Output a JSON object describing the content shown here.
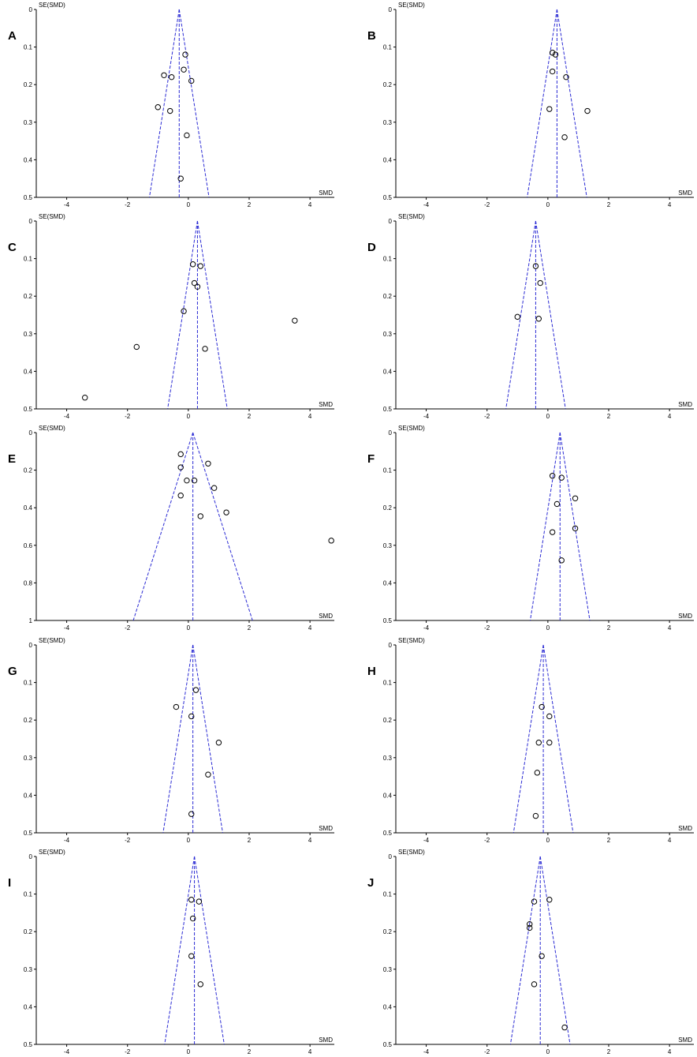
{
  "chart_data": [
    {
      "type": "scatter",
      "panel": "A",
      "pooled_smd": -0.3,
      "xlabel": "SMD",
      "ylabel": "SE(SMD)",
      "xlim": [
        -5,
        4.8
      ],
      "ylim": [
        0.5,
        0
      ],
      "x_ticks": [
        -4,
        -2,
        0,
        2,
        4
      ],
      "y_ticks": [
        0,
        0.1,
        0.2,
        0.3,
        0.4,
        0.5
      ],
      "points": [
        [
          -0.1,
          0.12
        ],
        [
          -0.15,
          0.16
        ],
        [
          0.1,
          0.19
        ],
        [
          -0.8,
          0.175
        ],
        [
          -0.55,
          0.18
        ],
        [
          -1.0,
          0.26
        ],
        [
          -0.6,
          0.27
        ],
        [
          -0.05,
          0.335
        ],
        [
          -0.25,
          0.45
        ]
      ]
    },
    {
      "type": "scatter",
      "panel": "B",
      "pooled_smd": 0.3,
      "xlabel": "SMD",
      "ylabel": "SE(SMD)",
      "xlim": [
        -5,
        4.8
      ],
      "ylim": [
        0.5,
        0
      ],
      "x_ticks": [
        -4,
        -2,
        0,
        2,
        4
      ],
      "y_ticks": [
        0,
        0.1,
        0.2,
        0.3,
        0.4,
        0.5
      ],
      "points": [
        [
          0.15,
          0.115
        ],
        [
          0.25,
          0.12
        ],
        [
          0.15,
          0.165
        ],
        [
          0.6,
          0.18
        ],
        [
          0.05,
          0.265
        ],
        [
          1.3,
          0.27
        ],
        [
          0.55,
          0.34
        ]
      ]
    },
    {
      "type": "scatter",
      "panel": "C",
      "pooled_smd": 0.3,
      "xlabel": "SMD",
      "ylabel": "SE(SMD)",
      "xlim": [
        -5,
        4.8
      ],
      "ylim": [
        0.5,
        0
      ],
      "x_ticks": [
        -4,
        -2,
        0,
        2,
        4
      ],
      "y_ticks": [
        0,
        0.1,
        0.2,
        0.3,
        0.4,
        0.5
      ],
      "points": [
        [
          0.15,
          0.115
        ],
        [
          0.4,
          0.12
        ],
        [
          0.2,
          0.165
        ],
        [
          0.3,
          0.175
        ],
        [
          -0.15,
          0.24
        ],
        [
          3.5,
          0.265
        ],
        [
          -1.7,
          0.335
        ],
        [
          0.55,
          0.34
        ],
        [
          -3.4,
          0.47
        ]
      ]
    },
    {
      "type": "scatter",
      "panel": "D",
      "pooled_smd": -0.4,
      "xlabel": "SMD",
      "ylabel": "SE(SMD)",
      "xlim": [
        -5,
        4.8
      ],
      "ylim": [
        0.5,
        0
      ],
      "x_ticks": [
        -4,
        -2,
        0,
        2,
        4
      ],
      "y_ticks": [
        0,
        0.1,
        0.2,
        0.3,
        0.4,
        0.5
      ],
      "points": [
        [
          -0.4,
          0.12
        ],
        [
          -0.25,
          0.165
        ],
        [
          -1.0,
          0.255
        ],
        [
          -0.3,
          0.26
        ]
      ]
    },
    {
      "type": "scatter",
      "panel": "E",
      "pooled_smd": 0.15,
      "xlabel": "SMD",
      "ylabel": "SE(SMD)",
      "xlim": [
        -5,
        4.8
      ],
      "ylim": [
        1.0,
        0
      ],
      "x_ticks": [
        -4,
        -2,
        0,
        2,
        4
      ],
      "y_ticks": [
        0,
        0.2,
        0.4,
        0.6,
        0.8,
        1
      ],
      "y_tick_labels": [
        "0",
        "0.2",
        "0.4",
        "0.6",
        "0.8",
        "1"
      ],
      "points": [
        [
          -0.25,
          0.115
        ],
        [
          0.65,
          0.165
        ],
        [
          -0.25,
          0.185
        ],
        [
          -0.05,
          0.255
        ],
        [
          0.2,
          0.255
        ],
        [
          0.85,
          0.295
        ],
        [
          -0.25,
          0.335
        ],
        [
          1.25,
          0.425
        ],
        [
          0.4,
          0.445
        ],
        [
          4.7,
          0.575
        ]
      ]
    },
    {
      "type": "scatter",
      "panel": "F",
      "pooled_smd": 0.4,
      "xlabel": "SMD",
      "ylabel": "SE(SMD)",
      "xlim": [
        -5,
        4.8
      ],
      "ylim": [
        0.5,
        0
      ],
      "x_ticks": [
        -4,
        -2,
        0,
        2,
        4
      ],
      "y_ticks": [
        0,
        0.1,
        0.2,
        0.3,
        0.4,
        0.5
      ],
      "points": [
        [
          0.15,
          0.115
        ],
        [
          0.45,
          0.12
        ],
        [
          0.9,
          0.175
        ],
        [
          0.3,
          0.19
        ],
        [
          0.9,
          0.255
        ],
        [
          0.15,
          0.265
        ],
        [
          0.45,
          0.34
        ]
      ]
    },
    {
      "type": "scatter",
      "panel": "G",
      "pooled_smd": 0.15,
      "xlabel": "SMD",
      "ylabel": "SE(SMD)",
      "xlim": [
        -5,
        4.8
      ],
      "ylim": [
        0.5,
        0
      ],
      "x_ticks": [
        -4,
        -2,
        0,
        2,
        4
      ],
      "y_ticks": [
        0,
        0.1,
        0.2,
        0.3,
        0.4,
        0.5
      ],
      "points": [
        [
          0.25,
          0.12
        ],
        [
          -0.4,
          0.165
        ],
        [
          0.1,
          0.19
        ],
        [
          1.0,
          0.26
        ],
        [
          0.65,
          0.345
        ],
        [
          0.1,
          0.45
        ]
      ]
    },
    {
      "type": "scatter",
      "panel": "H",
      "pooled_smd": -0.15,
      "xlabel": "SMD",
      "ylabel": "SE(SMD)",
      "xlim": [
        -5,
        4.8
      ],
      "ylim": [
        0.5,
        0
      ],
      "x_ticks": [
        -4,
        -2,
        0,
        2,
        4
      ],
      "y_ticks": [
        0,
        0.1,
        0.2,
        0.3,
        0.4,
        0.5
      ],
      "points": [
        [
          -0.2,
          0.165
        ],
        [
          0.05,
          0.19
        ],
        [
          -0.3,
          0.26
        ],
        [
          0.05,
          0.26
        ],
        [
          -0.35,
          0.34
        ],
        [
          -0.4,
          0.455
        ]
      ]
    },
    {
      "type": "scatter",
      "panel": "I",
      "pooled_smd": 0.2,
      "xlabel": "SMD",
      "ylabel": "SE(SMD)",
      "xlim": [
        -5,
        4.8
      ],
      "ylim": [
        0.5,
        0
      ],
      "x_ticks": [
        -4,
        -2,
        0,
        2,
        4
      ],
      "y_ticks": [
        0,
        0.1,
        0.2,
        0.3,
        0.4,
        0.5
      ],
      "points": [
        [
          0.1,
          0.115
        ],
        [
          0.35,
          0.12
        ],
        [
          0.15,
          0.165
        ],
        [
          0.1,
          0.265
        ],
        [
          0.4,
          0.34
        ]
      ]
    },
    {
      "type": "scatter",
      "panel": "J",
      "pooled_smd": -0.25,
      "xlabel": "SMD",
      "ylabel": "SE(SMD)",
      "xlim": [
        -5,
        4.8
      ],
      "ylim": [
        0.5,
        0
      ],
      "x_ticks": [
        -4,
        -2,
        0,
        2,
        4
      ],
      "y_ticks": [
        0,
        0.1,
        0.2,
        0.3,
        0.4,
        0.5
      ],
      "points": [
        [
          0.05,
          0.115
        ],
        [
          -0.45,
          0.12
        ],
        [
          -0.6,
          0.18
        ],
        [
          -0.6,
          0.19
        ],
        [
          -0.2,
          0.265
        ],
        [
          -0.45,
          0.34
        ],
        [
          0.55,
          0.455
        ]
      ]
    }
  ]
}
